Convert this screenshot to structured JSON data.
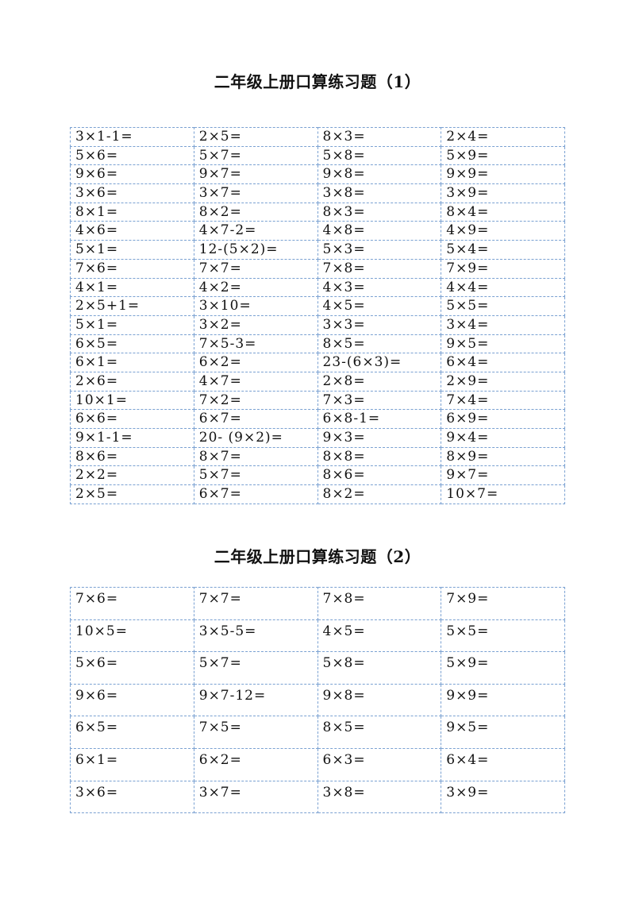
{
  "sheet1": {
    "title": "二年级上册口算练习题（1）",
    "rows": [
      [
        "3×1-1=",
        "2×5=",
        "8×3=",
        "2×4="
      ],
      [
        "5×6=",
        "5×7=",
        "5×8=",
        "5×9="
      ],
      [
        "9×6=",
        "9×7=",
        "9×8=",
        "9×9="
      ],
      [
        "3×6=",
        "3×7=",
        "3×8=",
        "3×9="
      ],
      [
        "8×1=",
        "8×2=",
        "8×3=",
        "8×4="
      ],
      [
        "4×6=",
        "4×7-2=",
        "4×8=",
        "4×9="
      ],
      [
        "5×1=",
        "12-(5×2)=",
        "5×3=",
        "5×4="
      ],
      [
        "7×6=",
        "7×7=",
        "7×8=",
        "7×9="
      ],
      [
        "4×1=",
        "4×2=",
        "4×3=",
        "4×4="
      ],
      [
        "2×5+1=",
        "3×10=",
        "4×5=",
        "5×5="
      ],
      [
        "5×1=",
        "3×2=",
        "3×3=",
        "3×4="
      ],
      [
        "6×5=",
        "7×5-3=",
        "8×5=",
        "9×5="
      ],
      [
        "6×1=",
        "6×2=",
        "23-(6×3)=",
        "6×4="
      ],
      [
        "2×6=",
        "4×7=",
        "2×8=",
        "2×9="
      ],
      [
        "10×1=",
        "7×2=",
        "7×3=",
        "7×4="
      ],
      [
        "6×6=",
        "6×7=",
        "6×8-1=",
        "6×9="
      ],
      [
        "9×1-1=",
        "20- (9×2)=",
        "9×3=",
        "9×4="
      ],
      [
        "8×6=",
        "8×7=",
        "8×8=",
        "8×9="
      ],
      [
        "2×2=",
        "5×7=",
        "8×6=",
        "9×7="
      ],
      [
        "2×5=",
        "6×7=",
        "8×2=",
        "10×7="
      ]
    ]
  },
  "sheet2": {
    "title": "二年级上册口算练习题（2）",
    "rows": [
      [
        "7×6=",
        "7×7=",
        "7×8=",
        "7×9="
      ],
      [
        "10×5=",
        "3×5-5=",
        "4×5=",
        "5×5="
      ],
      [
        "5×6=",
        "5×7=",
        "5×8=",
        "5×9="
      ],
      [
        "9×6=",
        "9×7-12=",
        "9×8=",
        "9×9="
      ],
      [
        "6×5=",
        "7×5=",
        "8×5=",
        "9×5="
      ],
      [
        "6×1=",
        "6×2=",
        "6×3=",
        "6×4="
      ],
      [
        "3×6=",
        "3×7=",
        "3×8=",
        "3×9="
      ]
    ]
  }
}
